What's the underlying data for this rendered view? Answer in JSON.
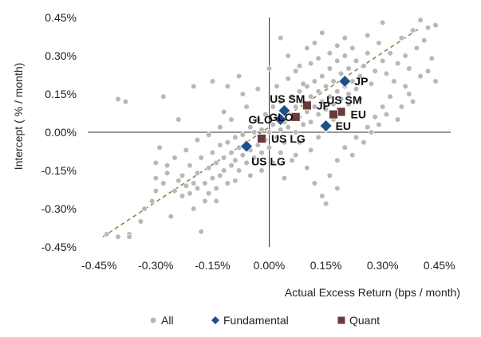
{
  "chart_data": {
    "type": "scatter",
    "xlabel": "Actual Excess Return (bps / month)",
    "ylabel": "Intercept ( % / month)",
    "xlim": [
      -0.48,
      0.48
    ],
    "ylim": [
      -0.45,
      0.45
    ],
    "x_ticks": [
      -0.45,
      -0.3,
      -0.15,
      0.0,
      0.15,
      0.3,
      0.45
    ],
    "x_tick_labels": [
      "-0.45%",
      "-0.30%",
      "-0.15%",
      "0.00%",
      "0.15%",
      "0.30%",
      "0.45%"
    ],
    "y_ticks": [
      -0.45,
      -0.3,
      -0.15,
      0.0,
      0.15,
      0.3,
      0.45
    ],
    "y_tick_labels": [
      "-0.45%",
      "-0.30%",
      "-0.15%",
      "0.00%",
      "0.15%",
      "0.30%",
      "0.45%"
    ],
    "grid": false,
    "legend_placement": "bottom",
    "colors": {
      "all": "#b8b8b8",
      "fundamental": "#1f4e8c",
      "quant": "#6b3a3a",
      "trend": "#8a8a4a",
      "axis": "#333333"
    },
    "trend_line": {
      "x": [
        -0.44,
        0.4
      ],
      "y": [
        -0.41,
        0.41
      ]
    },
    "series": [
      {
        "name": "All",
        "marker": "circle",
        "points": [
          [
            -0.43,
            -0.4
          ],
          [
            -0.4,
            -0.41
          ],
          [
            -0.37,
            -0.4
          ],
          [
            -0.37,
            -0.41
          ],
          [
            -0.34,
            -0.35
          ],
          [
            -0.33,
            -0.3
          ],
          [
            -0.31,
            -0.27
          ],
          [
            -0.3,
            -0.23
          ],
          [
            -0.3,
            -0.18
          ],
          [
            -0.3,
            -0.12
          ],
          [
            -0.29,
            -0.06
          ],
          [
            -0.28,
            -0.2
          ],
          [
            -0.27,
            -0.16
          ],
          [
            -0.26,
            -0.33
          ],
          [
            -0.25,
            -0.23
          ],
          [
            -0.24,
            -0.19
          ],
          [
            -0.23,
            -0.25
          ],
          [
            -0.23,
            -0.17
          ],
          [
            -0.22,
            -0.21
          ],
          [
            -0.21,
            -0.13
          ],
          [
            -0.21,
            -0.24
          ],
          [
            -0.2,
            -0.2
          ],
          [
            -0.2,
            -0.3
          ],
          [
            -0.19,
            -0.22
          ],
          [
            -0.19,
            -0.16
          ],
          [
            -0.18,
            -0.1
          ],
          [
            -0.18,
            -0.39
          ],
          [
            -0.17,
            -0.27
          ],
          [
            -0.17,
            -0.2
          ],
          [
            -0.16,
            -0.14
          ],
          [
            -0.16,
            -0.24
          ],
          [
            -0.15,
            -0.18
          ],
          [
            -0.15,
            -0.08
          ],
          [
            -0.14,
            -0.12
          ],
          [
            -0.14,
            -0.22
          ],
          [
            -0.13,
            -0.17
          ],
          [
            -0.13,
            -0.05
          ],
          [
            -0.12,
            -0.1
          ],
          [
            -0.12,
            -0.15
          ],
          [
            -0.11,
            -0.04
          ],
          [
            -0.11,
            -0.2
          ],
          [
            -0.1,
            -0.08
          ],
          [
            -0.1,
            -0.13
          ],
          [
            -0.09,
            -0.02
          ],
          [
            -0.09,
            -0.11
          ],
          [
            -0.08,
            -0.06
          ],
          [
            -0.08,
            -0.15
          ],
          [
            -0.07,
            -0.09
          ],
          [
            -0.07,
            -0.01
          ],
          [
            -0.06,
            -0.12
          ],
          [
            -0.06,
            -0.04
          ],
          [
            -0.05,
            -0.07
          ],
          [
            -0.05,
            0.02
          ],
          [
            -0.04,
            -0.1
          ],
          [
            -0.04,
            0.0
          ],
          [
            -0.03,
            -0.05
          ],
          [
            -0.03,
            0.05
          ],
          [
            -0.02,
            -0.08
          ],
          [
            -0.02,
            0.01
          ],
          [
            -0.01,
            -0.03
          ],
          [
            -0.01,
            0.07
          ],
          [
            0.0,
            0.0
          ],
          [
            0.0,
            -0.06
          ],
          [
            0.01,
            0.03
          ],
          [
            0.01,
            0.1
          ],
          [
            0.02,
            -0.02
          ],
          [
            0.02,
            0.06
          ],
          [
            0.03,
            0.01
          ],
          [
            0.03,
            0.12
          ],
          [
            0.04,
            0.04
          ],
          [
            0.04,
            -0.04
          ],
          [
            0.05,
            0.08
          ],
          [
            0.05,
            0.02
          ],
          [
            0.06,
            0.14
          ],
          [
            0.06,
            0.05
          ],
          [
            0.07,
            0.0
          ],
          [
            0.07,
            0.1
          ],
          [
            0.08,
            0.06
          ],
          [
            0.08,
            0.16
          ],
          [
            0.09,
            0.03
          ],
          [
            0.09,
            0.12
          ],
          [
            0.1,
            0.08
          ],
          [
            0.1,
            0.18
          ],
          [
            0.11,
            0.04
          ],
          [
            0.11,
            0.14
          ],
          [
            0.12,
            0.1
          ],
          [
            0.12,
            0.2
          ],
          [
            0.13,
            0.07
          ],
          [
            0.13,
            0.16
          ],
          [
            0.14,
            0.12
          ],
          [
            0.14,
            0.22
          ],
          [
            0.15,
            0.09
          ],
          [
            0.15,
            0.18
          ],
          [
            0.16,
            0.14
          ],
          [
            0.16,
            0.25
          ],
          [
            0.17,
            0.11
          ],
          [
            0.17,
            0.2
          ],
          [
            0.18,
            0.16
          ],
          [
            0.18,
            0.28
          ],
          [
            0.19,
            0.13
          ],
          [
            0.19,
            0.23
          ],
          [
            0.2,
            0.18
          ],
          [
            0.2,
            0.3
          ],
          [
            0.21,
            0.15
          ],
          [
            0.21,
            0.25
          ],
          [
            0.22,
            0.2
          ],
          [
            0.22,
            0.33
          ],
          [
            0.23,
            0.17
          ],
          [
            0.23,
            0.28
          ],
          [
            0.24,
            0.22
          ],
          [
            0.25,
            0.26
          ],
          [
            0.26,
            0.31
          ],
          [
            0.27,
            0.19
          ],
          [
            0.28,
            0.24
          ],
          [
            0.29,
            0.35
          ],
          [
            0.3,
            0.28
          ],
          [
            0.31,
            0.23
          ],
          [
            0.32,
            0.31
          ],
          [
            0.33,
            0.2
          ],
          [
            0.34,
            0.27
          ],
          [
            0.35,
            0.37
          ],
          [
            0.36,
            0.3
          ],
          [
            0.37,
            0.25
          ],
          [
            0.38,
            0.4
          ],
          [
            0.39,
            0.33
          ],
          [
            0.4,
            0.44
          ],
          [
            0.41,
            0.36
          ],
          [
            0.42,
            0.41
          ],
          [
            0.43,
            0.29
          ],
          [
            0.44,
            0.42
          ],
          [
            0.44,
            0.2
          ],
          [
            -0.4,
            0.13
          ],
          [
            -0.38,
            0.12
          ],
          [
            -0.28,
            0.14
          ],
          [
            -0.2,
            0.18
          ],
          [
            -0.24,
            0.05
          ],
          [
            -0.15,
            0.2
          ],
          [
            -0.12,
            0.08
          ],
          [
            -0.08,
            0.22
          ],
          [
            -0.03,
            0.17
          ],
          [
            0.0,
            0.25
          ],
          [
            0.03,
            0.37
          ],
          [
            0.05,
            0.3
          ],
          [
            0.08,
            0.26
          ],
          [
            0.1,
            0.33
          ],
          [
            0.12,
            0.35
          ],
          [
            0.14,
            0.39
          ],
          [
            -0.02,
            -0.15
          ],
          [
            0.01,
            -0.12
          ],
          [
            0.04,
            -0.18
          ],
          [
            0.07,
            -0.09
          ],
          [
            0.1,
            -0.14
          ],
          [
            0.12,
            -0.2
          ],
          [
            0.14,
            -0.25
          ],
          [
            0.16,
            -0.17
          ],
          [
            0.18,
            -0.11
          ],
          [
            0.2,
            -0.06
          ],
          [
            0.23,
            -0.02
          ],
          [
            0.26,
            0.02
          ],
          [
            0.28,
            0.06
          ],
          [
            0.3,
            0.1
          ],
          [
            0.32,
            0.14
          ],
          [
            0.34,
            0.05
          ],
          [
            0.36,
            0.18
          ],
          [
            0.38,
            0.12
          ],
          [
            0.4,
            0.22
          ],
          [
            0.42,
            0.24
          ],
          [
            0.15,
            -0.28
          ],
          [
            0.18,
            -0.22
          ],
          [
            0.22,
            -0.09
          ],
          [
            0.25,
            -0.04
          ],
          [
            0.27,
            0.0
          ],
          [
            0.29,
            0.03
          ],
          [
            0.31,
            0.07
          ],
          [
            0.35,
            0.1
          ],
          [
            0.37,
            0.15
          ],
          [
            -0.06,
            0.1
          ],
          [
            -0.1,
            0.05
          ],
          [
            -0.13,
            0.02
          ],
          [
            -0.16,
            -0.01
          ],
          [
            -0.19,
            -0.03
          ],
          [
            -0.22,
            -0.07
          ],
          [
            -0.25,
            -0.1
          ],
          [
            -0.27,
            -0.13
          ],
          [
            0.02,
            0.18
          ],
          [
            0.05,
            0.21
          ],
          [
            0.07,
            0.24
          ],
          [
            0.09,
            0.19
          ],
          [
            0.11,
            0.27
          ],
          [
            0.13,
            0.29
          ],
          [
            0.16,
            0.31
          ],
          [
            0.18,
            0.34
          ],
          [
            0.2,
            0.37
          ],
          [
            0.03,
            -0.08
          ],
          [
            0.06,
            -0.11
          ],
          [
            0.08,
            -0.04
          ],
          [
            0.11,
            -0.07
          ],
          [
            0.13,
            -0.02
          ],
          [
            0.15,
            0.01
          ],
          [
            0.17,
            0.05
          ],
          [
            0.19,
            0.08
          ],
          [
            0.21,
            0.11
          ],
          [
            0.24,
            0.13
          ],
          [
            -0.05,
            -0.17
          ],
          [
            -0.09,
            -0.19
          ],
          [
            -0.14,
            -0.27
          ],
          [
            -0.07,
            0.15
          ],
          [
            -0.11,
            0.18
          ],
          [
            0.26,
            0.38
          ],
          [
            0.3,
            0.43
          ]
        ]
      },
      {
        "name": "Fundamental",
        "marker": "diamond",
        "points": [
          [
            0.2,
            0.2
          ],
          [
            0.04,
            0.085
          ],
          [
            0.03,
            0.05
          ],
          [
            0.15,
            0.025
          ],
          [
            -0.06,
            -0.055
          ]
        ]
      },
      {
        "name": "Quant",
        "marker": "square",
        "points": [
          [
            0.1,
            0.105
          ],
          [
            0.19,
            0.08
          ],
          [
            0.17,
            0.07
          ],
          [
            0.07,
            0.06
          ],
          [
            -0.02,
            -0.025
          ]
        ]
      }
    ],
    "annotations": [
      {
        "text": "JP",
        "x": 0.2,
        "y": 0.2,
        "anchor": "right"
      },
      {
        "text": "US SM",
        "x": 0.04,
        "y": 0.085,
        "anchor": "above-left"
      },
      {
        "text": "JP",
        "x": 0.1,
        "y": 0.105,
        "anchor": "right"
      },
      {
        "text": "US SM",
        "x": 0.19,
        "y": 0.08,
        "anchor": "above-left"
      },
      {
        "text": "GLO",
        "x": 0.03,
        "y": 0.05,
        "anchor": "left"
      },
      {
        "text": "GLO",
        "x": 0.07,
        "y": 0.06,
        "anchor": "left-inline"
      },
      {
        "text": "EU",
        "x": 0.19,
        "y": 0.07,
        "anchor": "right"
      },
      {
        "text": "EU",
        "x": 0.15,
        "y": 0.025,
        "anchor": "right"
      },
      {
        "text": "US LG",
        "x": -0.02,
        "y": -0.025,
        "anchor": "right"
      },
      {
        "text": "US LG",
        "x": -0.06,
        "y": -0.055,
        "anchor": "below-right"
      }
    ],
    "legend": [
      {
        "label": "All",
        "marker": "circle"
      },
      {
        "label": "Fundamental",
        "marker": "diamond"
      },
      {
        "label": "Quant",
        "marker": "square"
      }
    ]
  }
}
